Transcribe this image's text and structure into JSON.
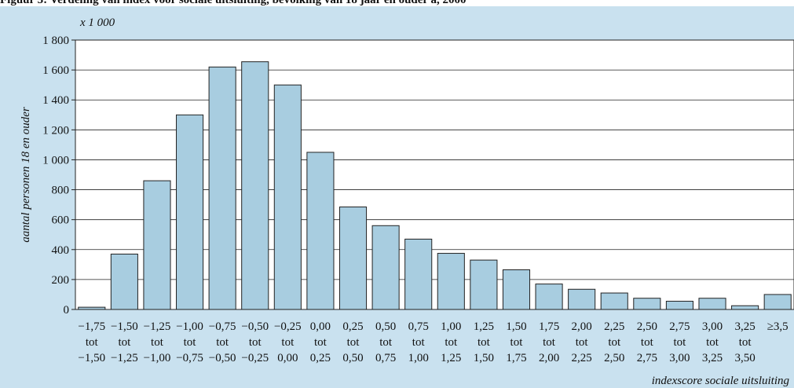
{
  "caption": "Figuur 3: Verdeling van index voor sociale uitsluiting, bevolking van 18 jaar en ouder a, 2000",
  "chart_data": {
    "type": "bar",
    "unit_label": "x 1 000",
    "ylabel": "aantal personen 18 en ouder",
    "xlabel": "indexscore sociale uitsluiting",
    "ylim": [
      0,
      1800
    ],
    "yticks": [
      "0",
      "200",
      "400",
      "600",
      "800",
      "1 000",
      "1 200",
      "1 400",
      "1 600",
      "1 800"
    ],
    "ytick_values": [
      0,
      200,
      400,
      600,
      800,
      1000,
      1200,
      1400,
      1600,
      1800
    ],
    "grid": true,
    "bar_color": "#a8cde0",
    "categories": [
      [
        "−1,75",
        "tot",
        "−1,50"
      ],
      [
        "−1,50",
        "tot",
        "−1,25"
      ],
      [
        "−1,25",
        "tot",
        "−1,00"
      ],
      [
        "−1,00",
        "tot",
        "−0,75"
      ],
      [
        "−0,75",
        "tot",
        "−0,50"
      ],
      [
        "−0,50",
        "tot",
        "−0,25"
      ],
      [
        "−0,25",
        "tot",
        "0,00"
      ],
      [
        "0,00",
        "tot",
        "0,25"
      ],
      [
        "0,25",
        "tot",
        "0,50"
      ],
      [
        "0,50",
        "tot",
        "0,75"
      ],
      [
        "0,75",
        "tot",
        "1,00"
      ],
      [
        "1,00",
        "tot",
        "1,25"
      ],
      [
        "1,25",
        "tot",
        "1,50"
      ],
      [
        "1,50",
        "tot",
        "1,75"
      ],
      [
        "1,75",
        "tot",
        "2,00"
      ],
      [
        "2,00",
        "tot",
        "2,25"
      ],
      [
        "2,25",
        "tot",
        "2,50"
      ],
      [
        "2,50",
        "tot",
        "2,75"
      ],
      [
        "2,75",
        "tot",
        "3,00"
      ],
      [
        "3,00",
        "tot",
        "3,25"
      ],
      [
        "3,25",
        "tot",
        "3,50"
      ],
      [
        "≥3,5",
        "",
        ""
      ]
    ],
    "values": [
      15,
      370,
      860,
      1300,
      1620,
      1655,
      1500,
      1050,
      685,
      560,
      470,
      375,
      330,
      265,
      170,
      135,
      110,
      75,
      55,
      75,
      25,
      100
    ]
  }
}
